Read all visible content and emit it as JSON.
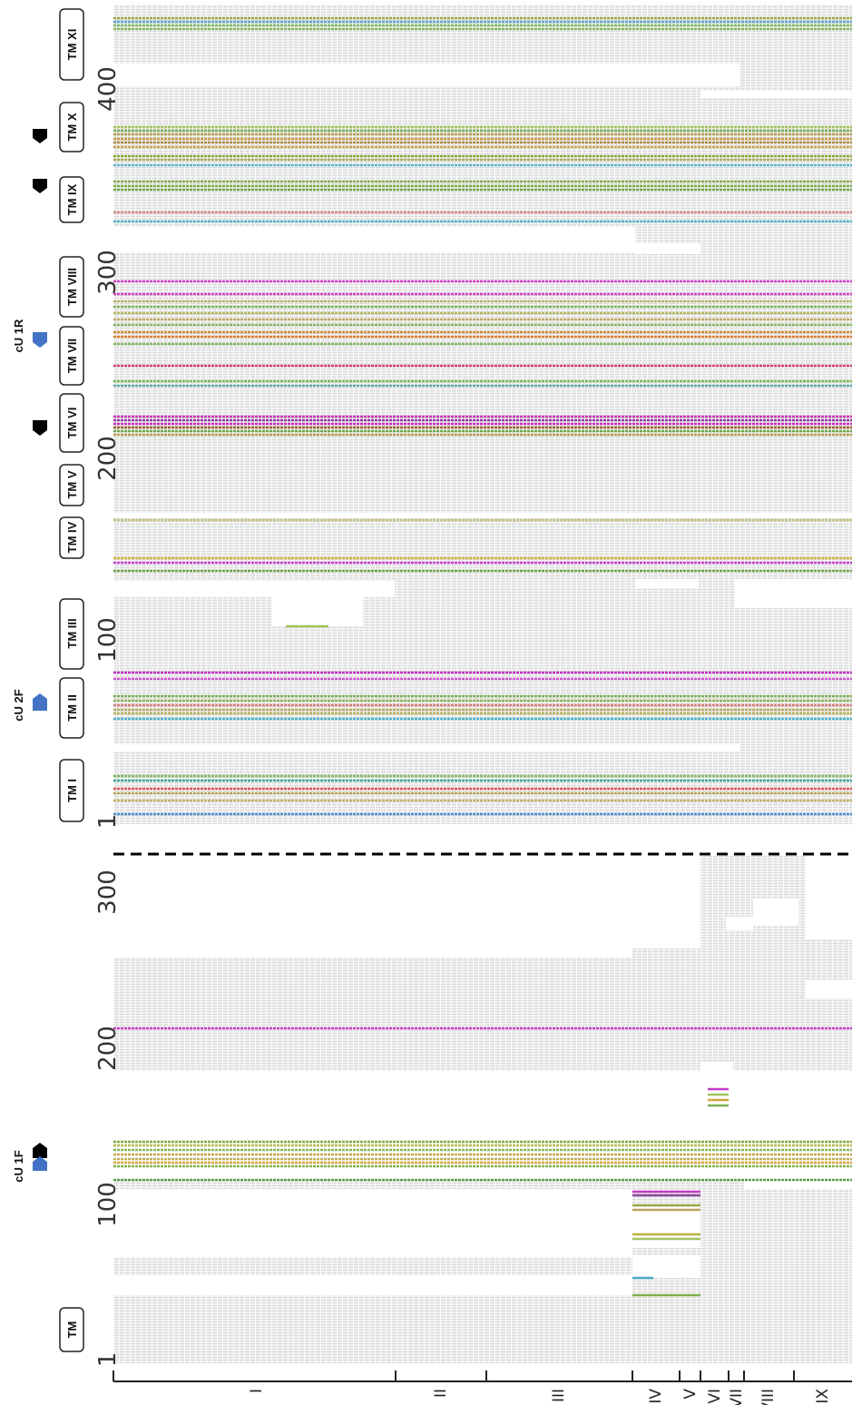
{
  "figure": {
    "top_panel": {
      "axis_ticks": [
        "1",
        "100",
        "200",
        "300",
        "400"
      ],
      "tm_labels": [
        "TM I",
        "TM II",
        "TM III",
        "TM IV",
        "TM V",
        "TM VI",
        "TM VII",
        "TM VIII",
        "TM IX",
        "TM X",
        "TM XI"
      ],
      "primer_labels": [
        "cU 2F",
        "cU 1R"
      ]
    },
    "bottom_panel": {
      "axis_ticks": [
        "1",
        "100",
        "200",
        "300"
      ],
      "tm_labels": [
        "TM"
      ],
      "primer_labels": [
        "cU 1F"
      ]
    },
    "group_labels": [
      "I",
      "II",
      "III",
      "IV",
      "V",
      "VI",
      "VII",
      "VIII",
      "IX"
    ],
    "colors": {
      "background_bars": "#d9d9d9",
      "primer_blue": "#4472c4",
      "primer_black": "#000000",
      "divider": "#000000"
    }
  }
}
